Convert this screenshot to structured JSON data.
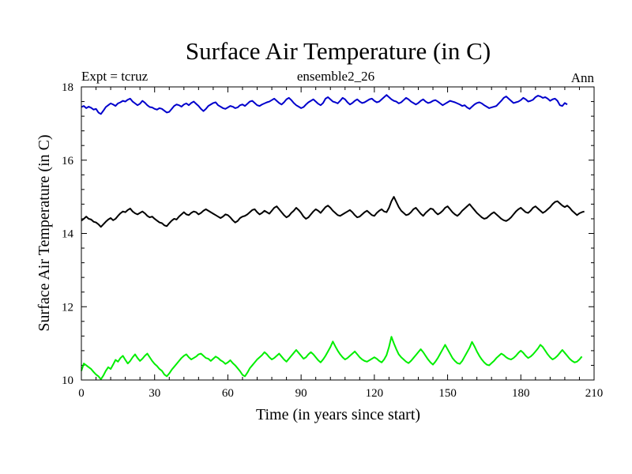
{
  "chart_data": {
    "type": "line",
    "title": "Surface Air Temperature (in C)",
    "subtitle_left": "Expt = tcruz",
    "subtitle_center": "ensemble2_26",
    "subtitle_right": "Ann",
    "xlabel": "Time (in years since start)",
    "ylabel": "Surface Air Temperature (in C)",
    "xlim": [
      0,
      210
    ],
    "ylim": [
      10,
      18
    ],
    "xticks": [
      0,
      30,
      60,
      90,
      120,
      150,
      180,
      210
    ],
    "yticks": [
      10,
      12,
      14,
      16,
      18
    ],
    "xtick_labels": [
      "0",
      "30",
      "60",
      "90",
      "120",
      "150",
      "180",
      "210"
    ],
    "ytick_labels": [
      "10",
      "12",
      "14",
      "16",
      "18"
    ],
    "grid": false,
    "x_start": 0,
    "x_step": 1,
    "series": [
      {
        "color": "#0000cc",
        "values": [
          17.45,
          17.48,
          17.42,
          17.46,
          17.43,
          17.38,
          17.4,
          17.3,
          17.26,
          17.35,
          17.45,
          17.5,
          17.55,
          17.52,
          17.48,
          17.55,
          17.58,
          17.62,
          17.6,
          17.65,
          17.68,
          17.6,
          17.55,
          17.5,
          17.54,
          17.62,
          17.57,
          17.5,
          17.45,
          17.44,
          17.4,
          17.38,
          17.42,
          17.4,
          17.35,
          17.3,
          17.32,
          17.4,
          17.48,
          17.52,
          17.5,
          17.46,
          17.52,
          17.55,
          17.5,
          17.56,
          17.6,
          17.54,
          17.48,
          17.4,
          17.34,
          17.4,
          17.48,
          17.52,
          17.56,
          17.58,
          17.5,
          17.46,
          17.42,
          17.4,
          17.44,
          17.48,
          17.46,
          17.42,
          17.44,
          17.5,
          17.52,
          17.48,
          17.54,
          17.6,
          17.62,
          17.56,
          17.5,
          17.48,
          17.52,
          17.55,
          17.58,
          17.6,
          17.64,
          17.68,
          17.62,
          17.56,
          17.52,
          17.58,
          17.66,
          17.7,
          17.64,
          17.56,
          17.5,
          17.46,
          17.42,
          17.45,
          17.52,
          17.58,
          17.62,
          17.66,
          17.6,
          17.54,
          17.5,
          17.56,
          17.68,
          17.72,
          17.66,
          17.6,
          17.58,
          17.55,
          17.62,
          17.7,
          17.66,
          17.58,
          17.52,
          17.56,
          17.62,
          17.66,
          17.6,
          17.56,
          17.58,
          17.62,
          17.66,
          17.68,
          17.62,
          17.58,
          17.6,
          17.66,
          17.72,
          17.78,
          17.72,
          17.66,
          17.62,
          17.6,
          17.55,
          17.58,
          17.64,
          17.7,
          17.66,
          17.6,
          17.56,
          17.52,
          17.56,
          17.62,
          17.66,
          17.6,
          17.56,
          17.58,
          17.62,
          17.64,
          17.6,
          17.55,
          17.5,
          17.54,
          17.58,
          17.62,
          17.6,
          17.58,
          17.55,
          17.52,
          17.48,
          17.5,
          17.44,
          17.4,
          17.46,
          17.52,
          17.56,
          17.58,
          17.55,
          17.5,
          17.46,
          17.42,
          17.44,
          17.46,
          17.48,
          17.55,
          17.62,
          17.7,
          17.74,
          17.68,
          17.62,
          17.56,
          17.58,
          17.6,
          17.64,
          17.7,
          17.66,
          17.6,
          17.62,
          17.65,
          17.72,
          17.76,
          17.74,
          17.7,
          17.72,
          17.68,
          17.62,
          17.66,
          17.68,
          17.62,
          17.5,
          17.48,
          17.56,
          17.52
        ]
      },
      {
        "color": "#000000",
        "values": [
          14.35,
          14.4,
          14.46,
          14.4,
          14.38,
          14.32,
          14.3,
          14.25,
          14.18,
          14.25,
          14.32,
          14.38,
          14.42,
          14.36,
          14.4,
          14.48,
          14.55,
          14.6,
          14.58,
          14.64,
          14.68,
          14.6,
          14.55,
          14.52,
          14.56,
          14.6,
          14.55,
          14.48,
          14.44,
          14.46,
          14.4,
          14.35,
          14.3,
          14.28,
          14.22,
          14.2,
          14.28,
          14.35,
          14.4,
          14.38,
          14.46,
          14.52,
          14.58,
          14.52,
          14.5,
          14.56,
          14.6,
          14.58,
          14.52,
          14.56,
          14.62,
          14.66,
          14.62,
          14.58,
          14.54,
          14.5,
          14.46,
          14.42,
          14.46,
          14.52,
          14.5,
          14.44,
          14.36,
          14.3,
          14.34,
          14.42,
          14.46,
          14.48,
          14.52,
          14.58,
          14.64,
          14.66,
          14.58,
          14.52,
          14.56,
          14.62,
          14.58,
          14.54,
          14.62,
          14.7,
          14.74,
          14.66,
          14.58,
          14.5,
          14.44,
          14.48,
          14.56,
          14.62,
          14.7,
          14.64,
          14.56,
          14.46,
          14.4,
          14.44,
          14.52,
          14.6,
          14.66,
          14.62,
          14.56,
          14.64,
          14.72,
          14.76,
          14.7,
          14.62,
          14.56,
          14.5,
          14.48,
          14.52,
          14.56,
          14.6,
          14.64,
          14.58,
          14.5,
          14.44,
          14.46,
          14.52,
          14.58,
          14.62,
          14.56,
          14.5,
          14.48,
          14.56,
          14.62,
          14.66,
          14.6,
          14.58,
          14.7,
          14.88,
          15.0,
          14.86,
          14.72,
          14.62,
          14.56,
          14.5,
          14.52,
          14.58,
          14.66,
          14.7,
          14.62,
          14.54,
          14.48,
          14.56,
          14.62,
          14.68,
          14.66,
          14.58,
          14.52,
          14.56,
          14.62,
          14.7,
          14.74,
          14.66,
          14.58,
          14.52,
          14.48,
          14.54,
          14.62,
          14.68,
          14.74,
          14.8,
          14.72,
          14.64,
          14.56,
          14.5,
          14.44,
          14.4,
          14.42,
          14.48,
          14.54,
          14.58,
          14.52,
          14.46,
          14.4,
          14.36,
          14.34,
          14.38,
          14.44,
          14.52,
          14.6,
          14.66,
          14.7,
          14.64,
          14.58,
          14.56,
          14.62,
          14.7,
          14.74,
          14.68,
          14.62,
          14.56,
          14.6,
          14.66,
          14.72,
          14.8,
          14.86,
          14.88,
          14.82,
          14.76,
          14.72,
          14.76,
          14.7,
          14.62,
          14.56,
          14.5,
          14.55,
          14.58,
          14.6
        ]
      },
      {
        "color": "#00ee00",
        "values": [
          10.25,
          10.45,
          10.4,
          10.35,
          10.3,
          10.22,
          10.15,
          10.1,
          10.02,
          10.12,
          10.25,
          10.35,
          10.3,
          10.42,
          10.55,
          10.5,
          10.6,
          10.66,
          10.55,
          10.45,
          10.52,
          10.62,
          10.7,
          10.6,
          10.52,
          10.58,
          10.66,
          10.72,
          10.62,
          10.52,
          10.44,
          10.38,
          10.3,
          10.25,
          10.15,
          10.1,
          10.18,
          10.28,
          10.36,
          10.44,
          10.52,
          10.6,
          10.66,
          10.7,
          10.62,
          10.56,
          10.6,
          10.64,
          10.7,
          10.72,
          10.66,
          10.6,
          10.58,
          10.52,
          10.58,
          10.64,
          10.6,
          10.54,
          10.5,
          10.44,
          10.48,
          10.54,
          10.46,
          10.4,
          10.32,
          10.24,
          10.14,
          10.1,
          10.2,
          10.32,
          10.4,
          10.48,
          10.56,
          10.62,
          10.68,
          10.76,
          10.7,
          10.62,
          10.56,
          10.6,
          10.66,
          10.72,
          10.64,
          10.56,
          10.5,
          10.58,
          10.66,
          10.74,
          10.82,
          10.74,
          10.66,
          10.58,
          10.62,
          10.7,
          10.76,
          10.7,
          10.62,
          10.54,
          10.48,
          10.56,
          10.66,
          10.78,
          10.9,
          11.05,
          10.92,
          10.8,
          10.7,
          10.62,
          10.56,
          10.6,
          10.66,
          10.72,
          10.78,
          10.7,
          10.62,
          10.56,
          10.52,
          10.5,
          10.54,
          10.58,
          10.62,
          10.58,
          10.52,
          10.48,
          10.56,
          10.68,
          10.9,
          11.18,
          11.0,
          10.84,
          10.7,
          10.62,
          10.56,
          10.5,
          10.46,
          10.52,
          10.6,
          10.68,
          10.76,
          10.84,
          10.76,
          10.66,
          10.56,
          10.48,
          10.42,
          10.5,
          10.6,
          10.72,
          10.84,
          10.96,
          10.84,
          10.72,
          10.6,
          10.52,
          10.46,
          10.44,
          10.52,
          10.64,
          10.76,
          10.88,
          11.04,
          10.92,
          10.78,
          10.66,
          10.56,
          10.48,
          10.42,
          10.4,
          10.46,
          10.52,
          10.6,
          10.66,
          10.72,
          10.68,
          10.62,
          10.58,
          10.56,
          10.6,
          10.66,
          10.74,
          10.8,
          10.74,
          10.66,
          10.6,
          10.64,
          10.7,
          10.78,
          10.86,
          10.96,
          10.9,
          10.8,
          10.7,
          10.62,
          10.56,
          10.6,
          10.66,
          10.74,
          10.82,
          10.74,
          10.66,
          10.58,
          10.52,
          10.48,
          10.5,
          10.56,
          10.64
        ]
      }
    ]
  }
}
